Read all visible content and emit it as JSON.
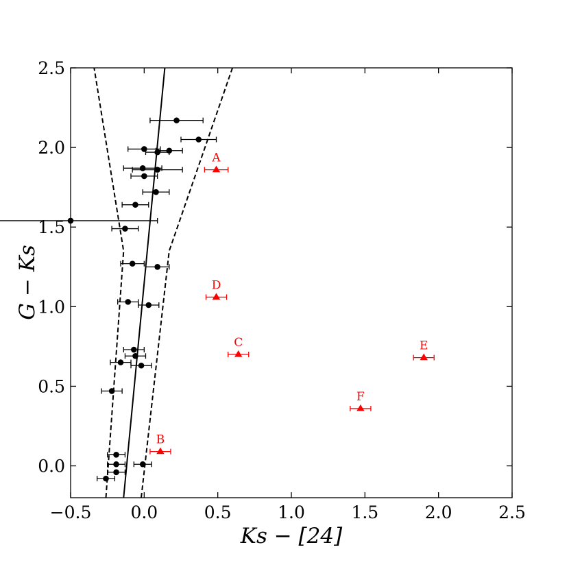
{
  "chart_data": {
    "type": "scatter",
    "title": "",
    "xlabel": "Ks − [24]",
    "ylabel": "G − Ks",
    "xlim": [
      -0.5,
      2.5
    ],
    "ylim": [
      -0.2,
      2.5
    ],
    "xticks": [
      -0.5,
      0.0,
      0.5,
      1.0,
      1.5,
      2.0,
      2.5
    ],
    "yticks": [
      0.0,
      0.5,
      1.0,
      1.5,
      2.0,
      2.5
    ],
    "xtick_labels": [
      "−0.5",
      "0.0",
      "0.5",
      "1.0",
      "1.5",
      "2.0",
      "2.5"
    ],
    "ytick_labels": [
      "0.0",
      "0.5",
      "1.0",
      "1.5",
      "2.0",
      "2.5"
    ],
    "grid": false,
    "colors": {
      "black_points": "#000000",
      "red_points": "#ff0000"
    },
    "series": [
      {
        "marker": "circle",
        "color": "#000000",
        "points": [
          {
            "x": 0.22,
            "y": 2.17,
            "xerr": 0.18
          },
          {
            "x": 0.37,
            "y": 2.05,
            "xerr": 0.12
          },
          {
            "x": 0.0,
            "y": 1.99,
            "xerr": 0.11
          },
          {
            "x": 0.17,
            "y": 1.98,
            "xerr": 0.09
          },
          {
            "x": 0.09,
            "y": 1.97,
            "xerr": 0.08
          },
          {
            "x": -0.01,
            "y": 1.87,
            "xerr": 0.13
          },
          {
            "x": 0.09,
            "y": 1.86,
            "xerr": 0.17
          },
          {
            "x": 0.0,
            "y": 1.82,
            "xerr": 0.09
          },
          {
            "x": 0.08,
            "y": 1.72,
            "xerr": 0.09
          },
          {
            "x": -0.06,
            "y": 1.64,
            "xerr": 0.09
          },
          {
            "x": -0.5,
            "y": 1.54,
            "xerr": 0.59
          },
          {
            "x": -0.13,
            "y": 1.49,
            "xerr": 0.09
          },
          {
            "x": -0.08,
            "y": 1.27,
            "xerr": 0.08
          },
          {
            "x": 0.09,
            "y": 1.25,
            "xerr": 0.08
          },
          {
            "x": -0.11,
            "y": 1.03,
            "xerr": 0.07
          },
          {
            "x": 0.03,
            "y": 1.01,
            "xerr": 0.07
          },
          {
            "x": -0.07,
            "y": 0.73,
            "xerr": 0.07
          },
          {
            "x": -0.06,
            "y": 0.69,
            "xerr": 0.07
          },
          {
            "x": -0.16,
            "y": 0.65,
            "xerr": 0.07
          },
          {
            "x": -0.02,
            "y": 0.63,
            "xerr": 0.07
          },
          {
            "x": -0.22,
            "y": 0.47,
            "xerr": 0.07
          },
          {
            "x": -0.19,
            "y": 0.07,
            "xerr": 0.06
          },
          {
            "x": -0.19,
            "y": 0.01,
            "xerr": 0.06
          },
          {
            "x": -0.01,
            "y": 0.01,
            "xerr": 0.06
          },
          {
            "x": -0.19,
            "y": -0.04,
            "xerr": 0.06
          },
          {
            "x": -0.26,
            "y": -0.08,
            "xerr": 0.06
          }
        ]
      },
      {
        "marker": "triangle",
        "color": "#ff0000",
        "points": [
          {
            "label": "A",
            "x": 0.49,
            "y": 1.86,
            "xerr": 0.08
          },
          {
            "label": "D",
            "x": 0.49,
            "y": 1.06,
            "xerr": 0.07
          },
          {
            "label": "C",
            "x": 0.64,
            "y": 0.7,
            "xerr": 0.07
          },
          {
            "label": "E",
            "x": 1.9,
            "y": 0.68,
            "xerr": 0.07
          },
          {
            "label": "F",
            "x": 1.47,
            "y": 0.36,
            "xerr": 0.07
          },
          {
            "label": "B",
            "x": 0.11,
            "y": 0.09,
            "xerr": 0.07
          }
        ]
      }
    ],
    "lines": [
      {
        "style": "solid",
        "points": [
          [
            -0.14,
            -0.2
          ],
          [
            0.14,
            2.5
          ]
        ]
      },
      {
        "style": "dashed",
        "points": [
          [
            -0.26,
            -0.2
          ],
          [
            -0.14,
            1.35
          ],
          [
            -0.34,
            2.5
          ]
        ]
      },
      {
        "style": "dashed",
        "points": [
          [
            -0.02,
            -0.2
          ],
          [
            0.17,
            1.35
          ],
          [
            0.6,
            2.5
          ]
        ]
      }
    ]
  }
}
